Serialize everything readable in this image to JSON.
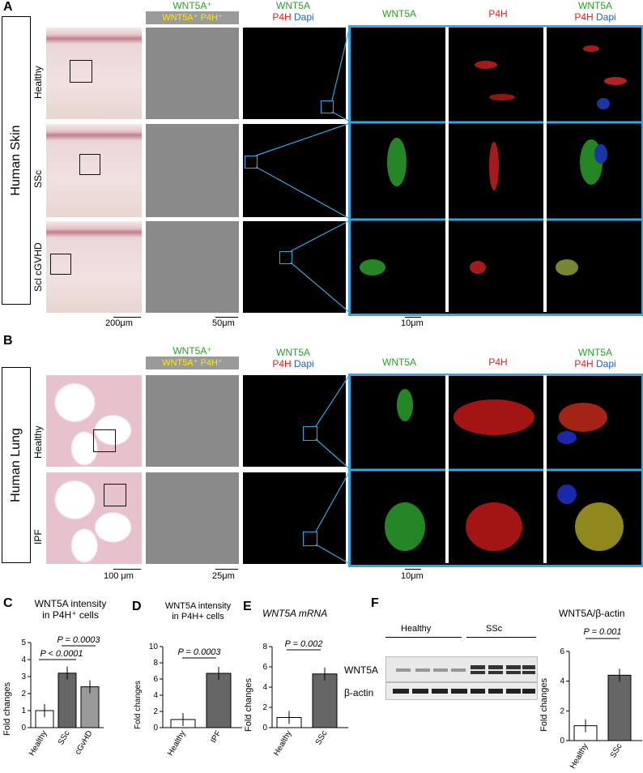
{
  "panels": {
    "A": {
      "letter": "A",
      "side_label": "Human Skin",
      "rows": [
        "Healthy",
        "SSc",
        "Scl cGVHD"
      ],
      "legend_top": "WNT5A⁺",
      "legend_bottom": "WNT5A⁺ P4H⁺",
      "merge_line1": "WNT5A",
      "merge_line2a": "P4H",
      "merge_line2b": "Dapi",
      "zoom_titles": [
        "WNT5A",
        "P4H"
      ],
      "zoom_merge_top": "WNT5A",
      "zoom_merge_bot_a": "P4H",
      "zoom_merge_bot_b": "Dapi",
      "scale_he": "200μm",
      "scale_vor": "50μm",
      "scale_zoom": "10μm"
    },
    "B": {
      "letter": "B",
      "side_label": "Human Lung",
      "rows": [
        "Healthy",
        "IPF"
      ],
      "legend_top": "WNT5A⁺",
      "legend_bottom": "WNT5A⁺ P4H⁺",
      "merge_line1": "WNT5A",
      "merge_line2a": "P4H",
      "merge_line2b": "Dapi",
      "zoom_titles": [
        "WNT5A",
        "P4H"
      ],
      "zoom_merge_top": "WNT5A",
      "zoom_merge_bot_a": "P4H",
      "zoom_merge_bot_b": "Dapi",
      "scale_he": "100 μm",
      "scale_vor": "25μm",
      "scale_zoom": "10μm"
    },
    "C": {
      "letter": "C",
      "title_l1": "WNT5A intensity",
      "title_l2": "in P4H⁺ cells",
      "ylabel": "Fold changes",
      "categories": [
        "Healthy",
        "SSc",
        "cGvHD"
      ],
      "p1": "P = 0.0003",
      "p2": "P < 0.0001",
      "yticks": [
        "0",
        "1",
        "2",
        "3",
        "4",
        "5"
      ]
    },
    "D": {
      "letter": "D",
      "title_l1": "WNT5A intensity",
      "title_l2": "in P4H+ cells",
      "ylabel": "Fold changes",
      "categories": [
        "Healthy",
        "IPF"
      ],
      "p": "P = 0.0003",
      "yticks": [
        "0",
        "2",
        "4",
        "6",
        "8",
        "10"
      ]
    },
    "E": {
      "letter": "E",
      "title": "WNT5A mRNA",
      "ylabel": "Fold changes",
      "categories": [
        "Healthy",
        "SSc"
      ],
      "p": "P = 0.002",
      "yticks": [
        "0",
        "2",
        "4",
        "6",
        "8"
      ]
    },
    "F": {
      "letter": "F",
      "blot_groups": [
        "Healthy",
        "SSc"
      ],
      "blot_rows": [
        "WNT5A",
        "β-actin"
      ],
      "title": "WNT5A/β-actin",
      "ylabel": "Fold changes",
      "categories": [
        "Healthy",
        "SSc"
      ],
      "p": "P = 0.001",
      "yticks": [
        "0",
        "2",
        "4",
        "6"
      ]
    }
  },
  "chart_data": [
    {
      "type": "bar",
      "title": "WNT5A intensity in P4H⁺ cells",
      "ylabel": "Fold changes",
      "categories": [
        "Healthy",
        "SSc",
        "cGvHD"
      ],
      "values": [
        1.0,
        3.2,
        2.4
      ],
      "ylim": [
        0,
        5
      ]
    },
    {
      "type": "bar",
      "title": "WNT5A intensity in P4H+ cells",
      "ylabel": "Fold changes",
      "categories": [
        "Healthy",
        "IPF"
      ],
      "values": [
        1.0,
        6.7
      ],
      "ylim": [
        0,
        10
      ]
    },
    {
      "type": "bar",
      "title": "WNT5A mRNA",
      "ylabel": "Fold changes",
      "categories": [
        "Healthy",
        "SSc"
      ],
      "values": [
        1.0,
        5.3
      ],
      "ylim": [
        0,
        8
      ]
    },
    {
      "type": "bar",
      "title": "WNT5A/β-actin",
      "ylabel": "Fold changes",
      "categories": [
        "Healthy",
        "SSc"
      ],
      "values": [
        1.0,
        4.4
      ],
      "ylim": [
        0,
        6
      ]
    }
  ]
}
